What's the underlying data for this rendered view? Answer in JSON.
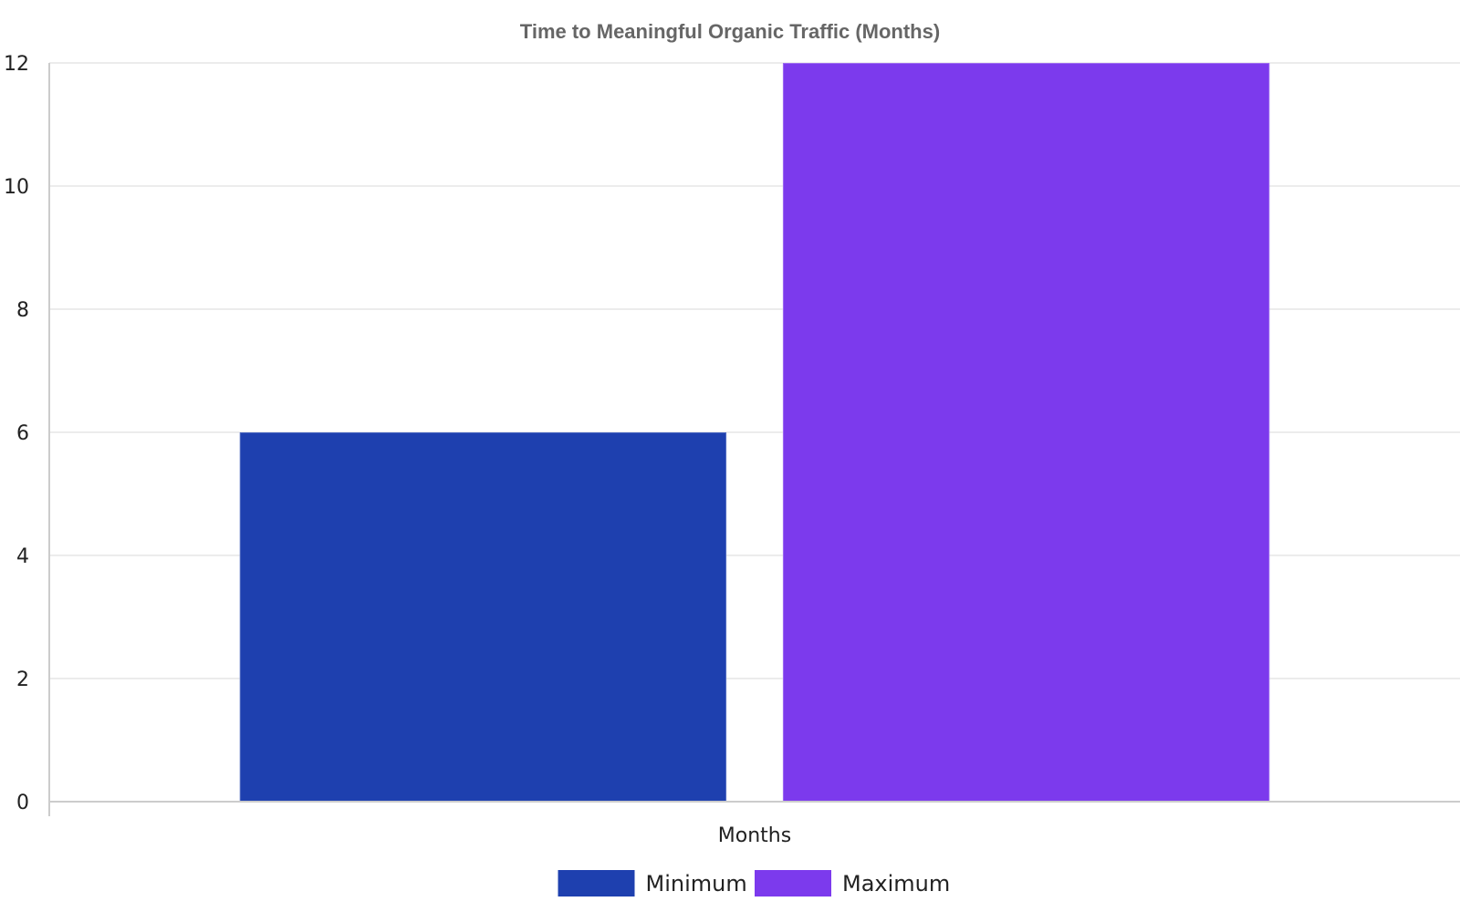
{
  "chart_data": {
    "type": "bar",
    "title": "Time to Meaningful Organic Traffic (Months)",
    "categories": [
      "Months"
    ],
    "series": [
      {
        "name": "Minimum",
        "values": [
          6
        ],
        "color": "#1e40af"
      },
      {
        "name": "Maximum",
        "values": [
          12
        ],
        "color": "#7c3aed"
      }
    ],
    "xlabel": "",
    "ylabel": "",
    "ylim": [
      0,
      12
    ],
    "yticks": [
      0,
      2,
      4,
      6,
      8,
      10,
      12
    ],
    "grid": true,
    "legend_position": "bottom"
  }
}
